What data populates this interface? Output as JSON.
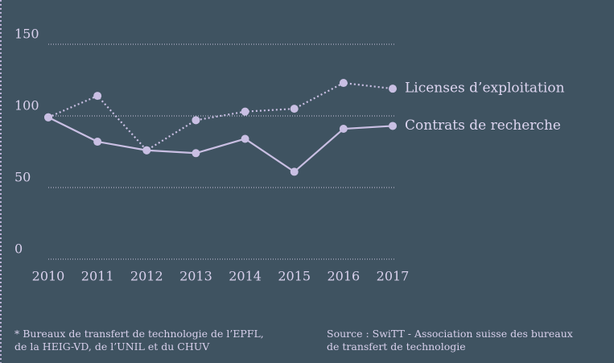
{
  "chart_data": {
    "type": "line",
    "x": [
      2010,
      2011,
      2012,
      2013,
      2014,
      2015,
      2016,
      2017
    ],
    "xlim": [
      2010,
      2017
    ],
    "xticks": [
      2010,
      2011,
      2012,
      2013,
      2014,
      2015,
      2016,
      2017
    ],
    "ylim": [
      0,
      150
    ],
    "yticks": [
      0,
      50,
      100,
      150
    ],
    "grid": true,
    "legend": "end",
    "series": [
      {
        "name": "Licenses d’exploitation",
        "color": "#c9bfe3",
        "line_style": "dotted",
        "values": [
          99,
          114,
          76,
          97,
          103,
          105,
          123,
          119
        ]
      },
      {
        "name": "Contrats de recherche",
        "color": "#c9bfe3",
        "line_style": "solid",
        "values": [
          99,
          82,
          76,
          74,
          84,
          61,
          91,
          93
        ]
      }
    ],
    "footnote": [
      "* Bureaux de transfert de technologie de l’EPFL,",
      "de la HEIG-VD, de l’UNIL et du CHUV"
    ],
    "source": [
      "Source : SwiTT - Association suisse des bureaux",
      "de transfert de technologie"
    ]
  }
}
